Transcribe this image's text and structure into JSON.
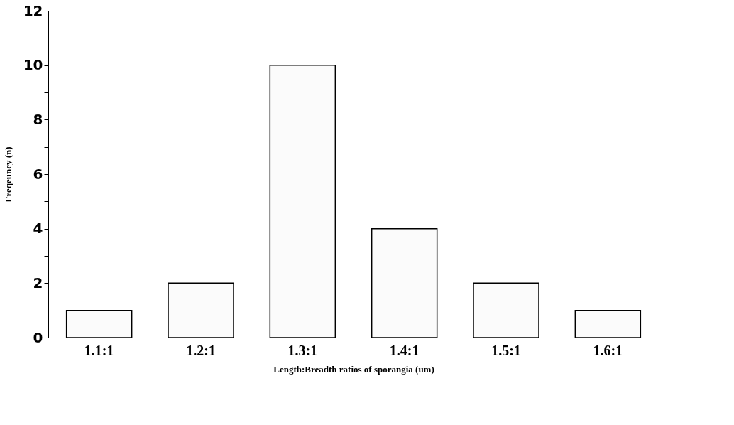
{
  "chart_data": {
    "type": "bar",
    "xlabel": "Length:Breadth ratios of sporangia (um)",
    "ylabel": "Freqeuncy (n)",
    "categories": [
      "1.1:1",
      "1.2:1",
      "1.3:1",
      "1.4:1",
      "1.5:1",
      "1.6:1"
    ],
    "values": [
      1,
      2,
      10,
      4,
      2,
      1
    ],
    "color": "#fbfbfb",
    "ylim": [
      0,
      12
    ],
    "yticks": [
      0,
      {
        "value": 1,
        "label": null
      },
      2,
      {
        "value": 3,
        "label": null
      },
      4,
      {
        "value": 5,
        "label": null
      },
      6,
      {
        "value": 7,
        "label": null
      },
      8,
      {
        "value": 9,
        "label": null
      },
      10,
      {
        "value": 11,
        "label": null
      },
      12
    ],
    "grid": false
  }
}
